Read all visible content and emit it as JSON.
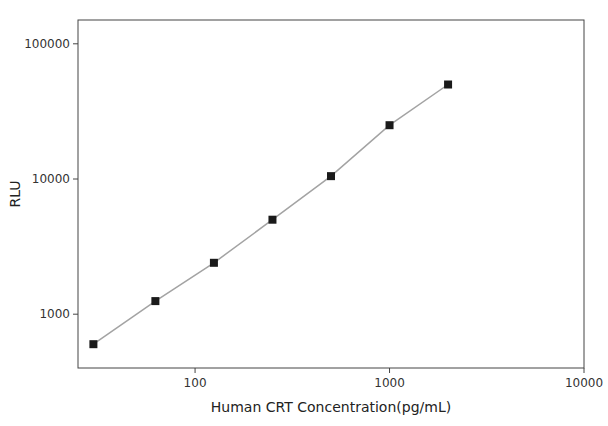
{
  "chart_data": {
    "type": "line",
    "x": [
      30,
      62.5,
      125,
      250,
      500,
      1000,
      2000
    ],
    "values": [
      600,
      1250,
      2400,
      5000,
      10500,
      25000,
      50000
    ],
    "xlabel": "Human CRT Concentration(pg/mL)",
    "ylabel": "RLU",
    "log": true,
    "xlim": [
      25,
      10000
    ],
    "ylim": [
      400,
      150000
    ],
    "xticks": [
      100,
      1000,
      10000
    ],
    "yticks": [
      1000,
      10000,
      100000
    ],
    "marker": "square",
    "line_style": "solid",
    "color": "#1a1a1a",
    "grid": false
  }
}
